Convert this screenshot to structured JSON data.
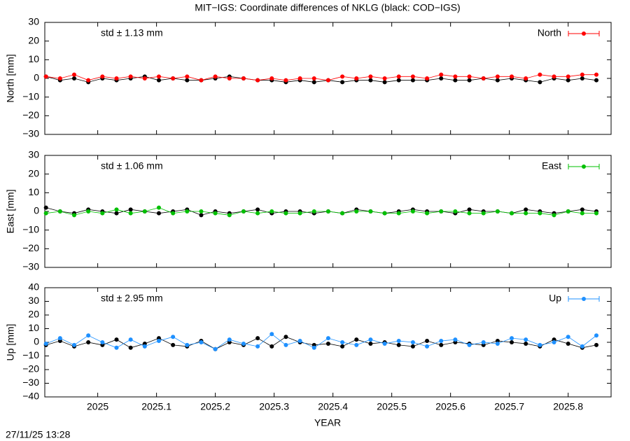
{
  "title": "MIT−IGS: Coordinate differences of NKLG (black: COD−IGS)",
  "xlabel": "YEAR",
  "timestamp": "27/11/25 13:28",
  "chart_data": [
    {
      "type": "line",
      "ylabel": "North [mm]",
      "annotation": "std ± 1.13 mm",
      "xlim": [
        2024.91,
        2025.873
      ],
      "xticks": [
        2025,
        2025.1,
        2025.2,
        2025.3,
        2025.4,
        2025.5,
        2025.6,
        2025.7,
        2025.8
      ],
      "ylim": [
        -30,
        30
      ],
      "yticks": [
        {
          "value": -30,
          "label": "−30"
        },
        {
          "value": -20,
          "label": "−20"
        },
        {
          "value": -10,
          "label": "−10"
        },
        0,
        10,
        20,
        30
      ],
      "legend": "top-right",
      "x": [
        2024.912,
        2024.936,
        2024.96,
        2024.984,
        2025.008,
        2025.032,
        2025.056,
        2025.08,
        2025.104,
        2025.128,
        2025.152,
        2025.176,
        2025.2,
        2025.224,
        2025.248,
        2025.272,
        2025.296,
        2025.32,
        2025.344,
        2025.368,
        2025.392,
        2025.416,
        2025.44,
        2025.464,
        2025.488,
        2025.512,
        2025.536,
        2025.56,
        2025.584,
        2025.608,
        2025.632,
        2025.656,
        2025.68,
        2025.704,
        2025.728,
        2025.752,
        2025.776,
        2025.8,
        2025.824,
        2025.848
      ],
      "series": [
        {
          "color": "#000000",
          "values": [
            1,
            -1,
            0,
            -2,
            0,
            -1,
            0,
            1,
            -1,
            0,
            -1,
            -1,
            0,
            1,
            0,
            -1,
            -1,
            -2,
            -1,
            -2,
            -1,
            -2,
            -1,
            -1,
            -2,
            -1,
            -1,
            -1,
            0,
            -1,
            -1,
            0,
            -1,
            0,
            -1,
            -2,
            0,
            -1,
            0,
            -1
          ]
        },
        {
          "name": "North",
          "color": "#ff0000",
          "values": [
            1,
            0,
            2,
            -1,
            1,
            0,
            1,
            0,
            1,
            0,
            1,
            -1,
            1,
            0,
            0,
            -1,
            0,
            -1,
            0,
            0,
            -1,
            1,
            0,
            1,
            0,
            1,
            1,
            0,
            2,
            1,
            1,
            0,
            1,
            1,
            0,
            2,
            1,
            1,
            2,
            2
          ]
        }
      ]
    },
    {
      "type": "line",
      "ylabel": "East [mm]",
      "annotation": "std ± 1.06 mm",
      "xlim": [
        2024.91,
        2025.873
      ],
      "xticks": [
        2025,
        2025.1,
        2025.2,
        2025.3,
        2025.4,
        2025.5,
        2025.6,
        2025.7,
        2025.8
      ],
      "ylim": [
        -30,
        30
      ],
      "yticks": [
        {
          "value": -30,
          "label": "−30"
        },
        {
          "value": -20,
          "label": "−20"
        },
        {
          "value": -10,
          "label": "−10"
        },
        0,
        10,
        20,
        30
      ],
      "legend": "top-right",
      "x": [
        2024.912,
        2024.936,
        2024.96,
        2024.984,
        2025.008,
        2025.032,
        2025.056,
        2025.08,
        2025.104,
        2025.128,
        2025.152,
        2025.176,
        2025.2,
        2025.224,
        2025.248,
        2025.272,
        2025.296,
        2025.32,
        2025.344,
        2025.368,
        2025.392,
        2025.416,
        2025.44,
        2025.464,
        2025.488,
        2025.512,
        2025.536,
        2025.56,
        2025.584,
        2025.608,
        2025.632,
        2025.656,
        2025.68,
        2025.704,
        2025.728,
        2025.752,
        2025.776,
        2025.8,
        2025.824,
        2025.848
      ],
      "series": [
        {
          "color": "#000000",
          "values": [
            2,
            0,
            -1,
            1,
            0,
            -1,
            1,
            0,
            -1,
            0,
            1,
            -2,
            0,
            -1,
            0,
            1,
            -1,
            0,
            0,
            -1,
            0,
            -1,
            1,
            0,
            -1,
            0,
            1,
            0,
            0,
            -1,
            1,
            0,
            0,
            -1,
            1,
            0,
            -1,
            0,
            1,
            0
          ]
        },
        {
          "name": "East",
          "color": "#00c000",
          "values": [
            -1,
            0,
            -2,
            0,
            -1,
            1,
            -1,
            0,
            2,
            -1,
            0,
            0,
            -1,
            -2,
            0,
            -1,
            0,
            -1,
            -1,
            0,
            0,
            -1,
            0,
            0,
            -1,
            -1,
            0,
            -1,
            0,
            0,
            -1,
            -1,
            0,
            -1,
            -1,
            -1,
            -2,
            0,
            -1,
            -1
          ]
        }
      ]
    },
    {
      "type": "line",
      "ylabel": "Up [mm]",
      "annotation": "std ± 2.95 mm",
      "xlim": [
        2024.91,
        2025.873
      ],
      "xticks": [
        2025,
        2025.1,
        2025.2,
        2025.3,
        2025.4,
        2025.5,
        2025.6,
        2025.7,
        2025.8
      ],
      "ylim": [
        -40,
        40
      ],
      "yticks": [
        {
          "value": -40,
          "label": "−40"
        },
        {
          "value": -30,
          "label": "−30"
        },
        {
          "value": -20,
          "label": "−20"
        },
        {
          "value": -10,
          "label": "−10"
        },
        0,
        10,
        20,
        30,
        40
      ],
      "legend": "top-right",
      "xtick_labels": true,
      "x": [
        2024.912,
        2024.936,
        2024.96,
        2024.984,
        2025.008,
        2025.032,
        2025.056,
        2025.08,
        2025.104,
        2025.128,
        2025.152,
        2025.176,
        2025.2,
        2025.224,
        2025.248,
        2025.272,
        2025.296,
        2025.32,
        2025.344,
        2025.368,
        2025.392,
        2025.416,
        2025.44,
        2025.464,
        2025.488,
        2025.512,
        2025.536,
        2025.56,
        2025.584,
        2025.608,
        2025.632,
        2025.656,
        2025.68,
        2025.704,
        2025.728,
        2025.752,
        2025.776,
        2025.8,
        2025.824,
        2025.848
      ],
      "series": [
        {
          "color": "#000000",
          "values": [
            -2,
            1,
            -3,
            0,
            -2,
            2,
            -4,
            -1,
            3,
            -2,
            -3,
            1,
            -5,
            0,
            -2,
            3,
            -3,
            4,
            0,
            -2,
            -1,
            -3,
            2,
            -1,
            0,
            -2,
            -3,
            1,
            -2,
            0,
            -1,
            -2,
            1,
            0,
            -1,
            -3,
            2,
            -1,
            -4,
            -2
          ]
        },
        {
          "name": "Up",
          "color": "#1e90ff",
          "values": [
            -1,
            3,
            -2,
            5,
            0,
            -4,
            2,
            -3,
            1,
            4,
            -2,
            0,
            -5,
            2,
            -1,
            -3,
            6,
            -2,
            1,
            -4,
            3,
            0,
            -2,
            2,
            -1,
            1,
            0,
            -3,
            1,
            2,
            -2,
            0,
            -1,
            3,
            2,
            -2,
            0,
            4,
            -3,
            5
          ]
        }
      ]
    }
  ]
}
